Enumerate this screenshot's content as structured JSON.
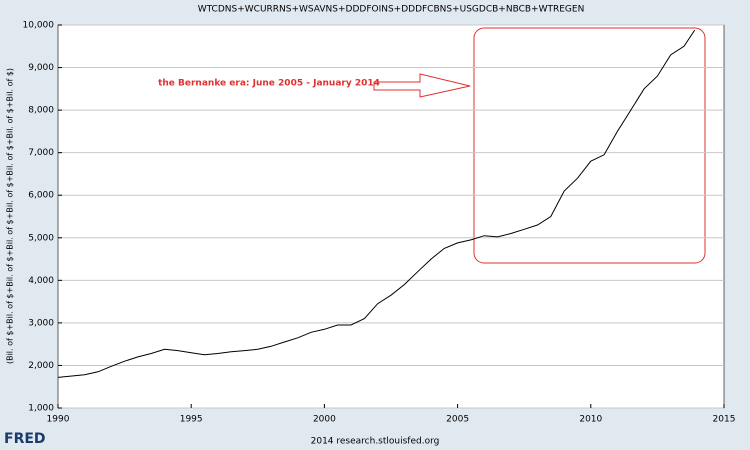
{
  "chart_data": {
    "type": "line",
    "title": "WTCDNS+WCURRNS+WSAVNS+DDDFOINS+DDDFCBNS+USGDCB+NBCB+WTREGEN",
    "y_label": "(Bil. of $+Bil. of $+Bil. of $+Bil. of $+Bil. of $+Bil. of $+Bil. of $+Bil. of $)",
    "annotation": "the Bernanke era: June 2005 - January 2014",
    "footer": "2014 research.stlouisfed.org",
    "logo": "FRED",
    "x": [
      1990.0,
      1991.0,
      1991.5,
      1992.0,
      1992.5,
      1993.0,
      1993.5,
      1994.0,
      1994.5,
      1995.0,
      1995.5,
      1996.0,
      1996.5,
      1997.0,
      1997.5,
      1998.0,
      1998.5,
      1999.0,
      1999.5,
      2000.0,
      2000.5,
      2001.0,
      2001.5,
      2002.0,
      2002.5,
      2003.0,
      2003.5,
      2004.0,
      2004.5,
      2005.0,
      2005.5,
      2006.0,
      2006.5,
      2007.0,
      2007.5,
      2008.0,
      2008.5,
      2009.0,
      2009.5,
      2010.0,
      2010.5,
      2011.0,
      2011.5,
      2012.0,
      2012.5,
      2013.0,
      2013.5,
      2013.9
    ],
    "values": [
      1720,
      1780,
      1850,
      1980,
      2100,
      2200,
      2280,
      2380,
      2350,
      2300,
      2250,
      2280,
      2320,
      2350,
      2380,
      2450,
      2550,
      2650,
      2780,
      2850,
      2950,
      2950,
      3100,
      3450,
      3650,
      3900,
      4200,
      4500,
      4750,
      4880,
      4950,
      5050,
      5020,
      5100,
      5200,
      5300,
      5500,
      6100,
      6400,
      6800,
      6950,
      7500,
      8000,
      8500,
      8800,
      9300,
      9500,
      9880
    ],
    "color": "#000000",
    "xlim": [
      1990,
      2015
    ],
    "xticks": [
      1990,
      1995,
      2000,
      2005,
      2010,
      2015
    ],
    "ylim": [
      1000,
      10000
    ],
    "yticks": [
      {
        "value": 1000,
        "label": "1,000"
      },
      {
        "value": 2000,
        "label": "2,000"
      },
      {
        "value": 3000,
        "label": "3,000"
      },
      {
        "value": 4000,
        "label": "4,000"
      },
      {
        "value": 5000,
        "label": "5,000"
      },
      {
        "value": 6000,
        "label": "6,000"
      },
      {
        "value": 7000,
        "label": "7,000"
      },
      {
        "value": 8000,
        "label": "8,000"
      },
      {
        "value": 9000,
        "label": "9,000"
      },
      {
        "value": 10000,
        "label": "10,000"
      }
    ],
    "grid": true
  }
}
